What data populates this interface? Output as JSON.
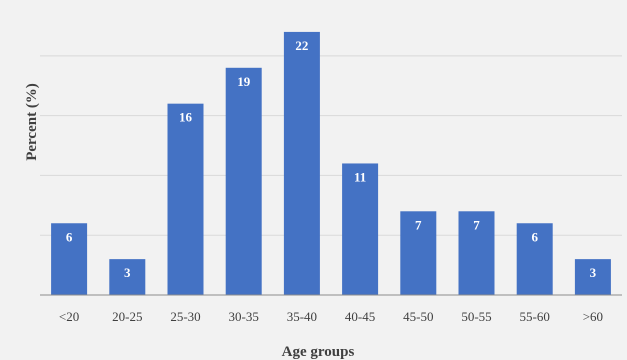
{
  "chart_data": {
    "type": "bar",
    "title": "",
    "xlabel": "Age groups",
    "ylabel": "Percent (%)",
    "categories": [
      "<20",
      "20-25",
      "25-30",
      "30-35",
      "35-40",
      "40-45",
      "45-50",
      "50-55",
      "55-60",
      ">60"
    ],
    "series": [
      {
        "values": [
          6,
          3,
          16,
          19,
          22,
          11,
          7,
          7,
          6,
          3
        ]
      }
    ],
    "data_labels": [
      "6",
      "3",
      "16",
      "19",
      "22",
      "11",
      "7",
      "7",
      "6",
      "3"
    ],
    "ylim": [
      0,
      24
    ],
    "gridlines": true,
    "legend": "none",
    "bar_color": "#4472c4",
    "grid_color": "#d9d9d9",
    "background_color": "#f2f2f2"
  }
}
